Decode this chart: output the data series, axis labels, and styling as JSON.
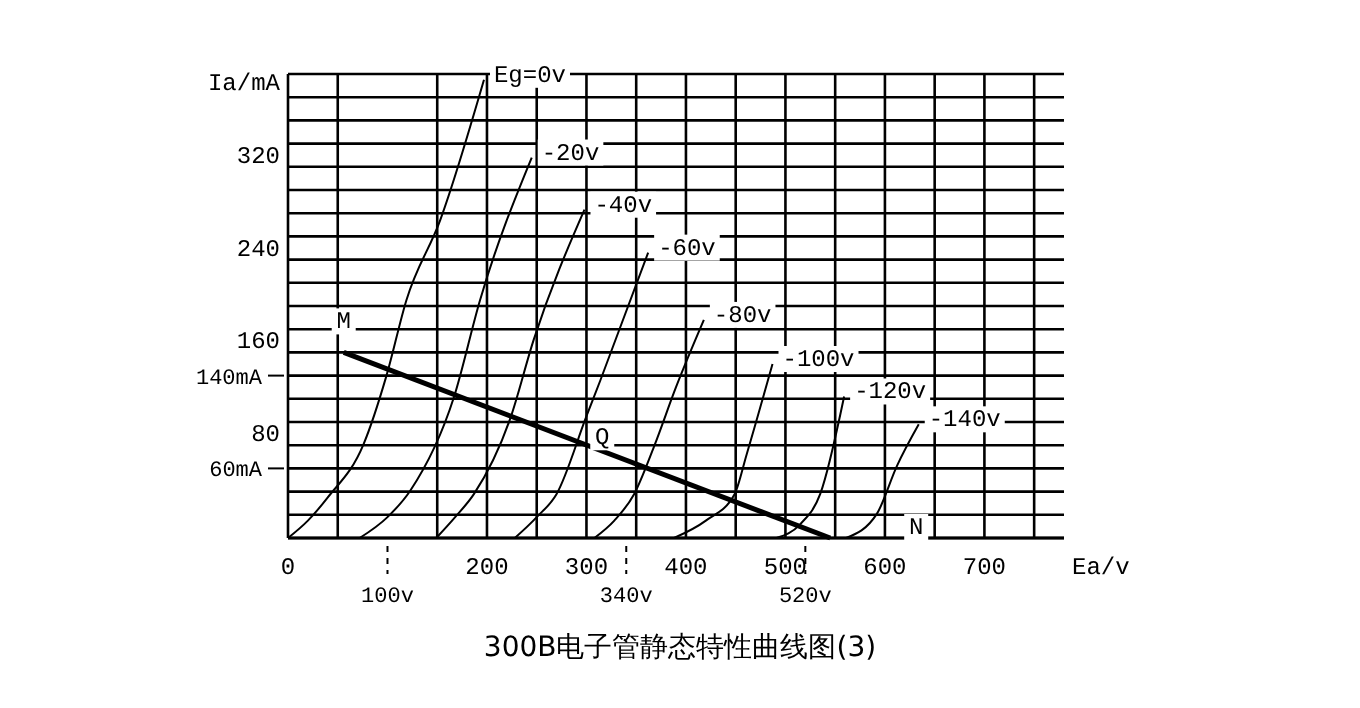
{
  "chart_data": {
    "type": "line",
    "title": "300B电子管静态特性曲线图(3)",
    "xlabel": "Ea/v",
    "ylabel": "Ia/mA",
    "xlim": [
      0,
      780
    ],
    "ylim": [
      0,
      400
    ],
    "xticks": [
      0,
      200,
      300,
      400,
      500,
      600,
      700
    ],
    "yticks": [
      80,
      160,
      240,
      320
    ],
    "grid": true,
    "marker": "none",
    "line_style": "solid",
    "series": [
      {
        "name": "Eg=0v",
        "color": "#000000",
        "x": [
          0,
          20,
          40,
          76,
          99,
          119,
          153,
          197
        ],
        "values": [
          0,
          15,
          35,
          81,
          140,
          205,
          274,
          395
        ]
      },
      {
        "name": "-20v",
        "color": "#000000",
        "x": [
          72,
          100,
          123,
          167,
          193,
          245
        ],
        "values": [
          0,
          18,
          41,
          122,
          205,
          328
        ]
      },
      {
        "name": "-40v",
        "color": "#000000",
        "x": [
          149,
          168,
          187,
          223,
          247,
          298
        ],
        "values": [
          0,
          18,
          38,
          102,
          171,
          283
        ]
      },
      {
        "name": "-60v",
        "color": "#000000",
        "x": [
          228,
          250,
          270,
          300,
          314,
          362
        ],
        "values": [
          0,
          18,
          38,
          105,
          136,
          246
        ]
      },
      {
        "name": "-80v",
        "color": "#000000",
        "x": [
          308,
          328,
          348,
          368,
          390,
          418
        ],
        "values": [
          0,
          15,
          38,
          79,
          130,
          188
        ]
      },
      {
        "name": "-100v",
        "color": "#000000",
        "x": [
          388,
          420,
          449,
          461,
          487
        ],
        "values": [
          0,
          15,
          38,
          72,
          150
        ]
      },
      {
        "name": "-120v",
        "color": "#000000",
        "x": [
          491,
          515,
          535,
          559
        ],
        "values": [
          0,
          12,
          38,
          122
        ]
      },
      {
        "name": "-140v",
        "color": "#000000",
        "x": [
          561,
          592,
          612,
          634
        ],
        "values": [
          0,
          21,
          62,
          98
        ]
      },
      {
        "color": "#000000",
        "x": [
          56,
          545
        ],
        "values": [
          160,
          0
        ]
      }
    ],
    "annotations": [
      {
        "text": "M",
        "x": 56,
        "y": 160
      },
      {
        "text": "Q",
        "x": 340,
        "y": 67
      },
      "N"
    ],
    "ref_lines": [
      {
        "axis": "x",
        "value": 100,
        "label": "100v",
        "line_style": "dashed"
      },
      {
        "axis": "x",
        "value": 340,
        "label": "340v",
        "line_style": "dashed"
      },
      {
        "axis": "x",
        "value": 520,
        "label": "520v",
        "line_style": "dashed"
      },
      {
        "axis": "y",
        "value": 140,
        "label": "140mA"
      },
      {
        "axis": "y",
        "value": 60,
        "label": "60mA"
      }
    ]
  }
}
